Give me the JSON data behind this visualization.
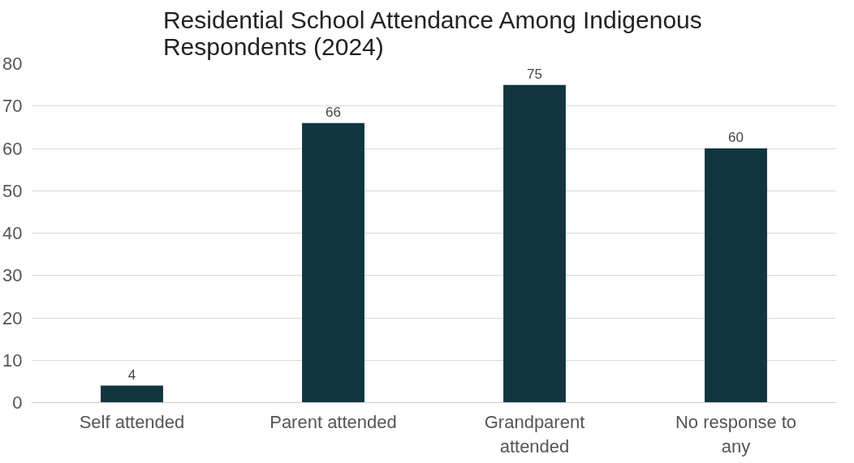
{
  "chart_data": {
    "type": "bar",
    "title": "Residential School Attendance Among Indigenous Respondents (2024)",
    "categories": [
      "Self attended",
      "Parent attended",
      "Grandparent attended",
      "No response to any"
    ],
    "values": [
      4,
      66,
      75,
      60
    ],
    "color": "#12363f",
    "ylim": [
      0,
      80
    ],
    "yticks": [
      0,
      10,
      20,
      30,
      40,
      50,
      60,
      70,
      80
    ],
    "grid": "y",
    "data_labels": true
  }
}
